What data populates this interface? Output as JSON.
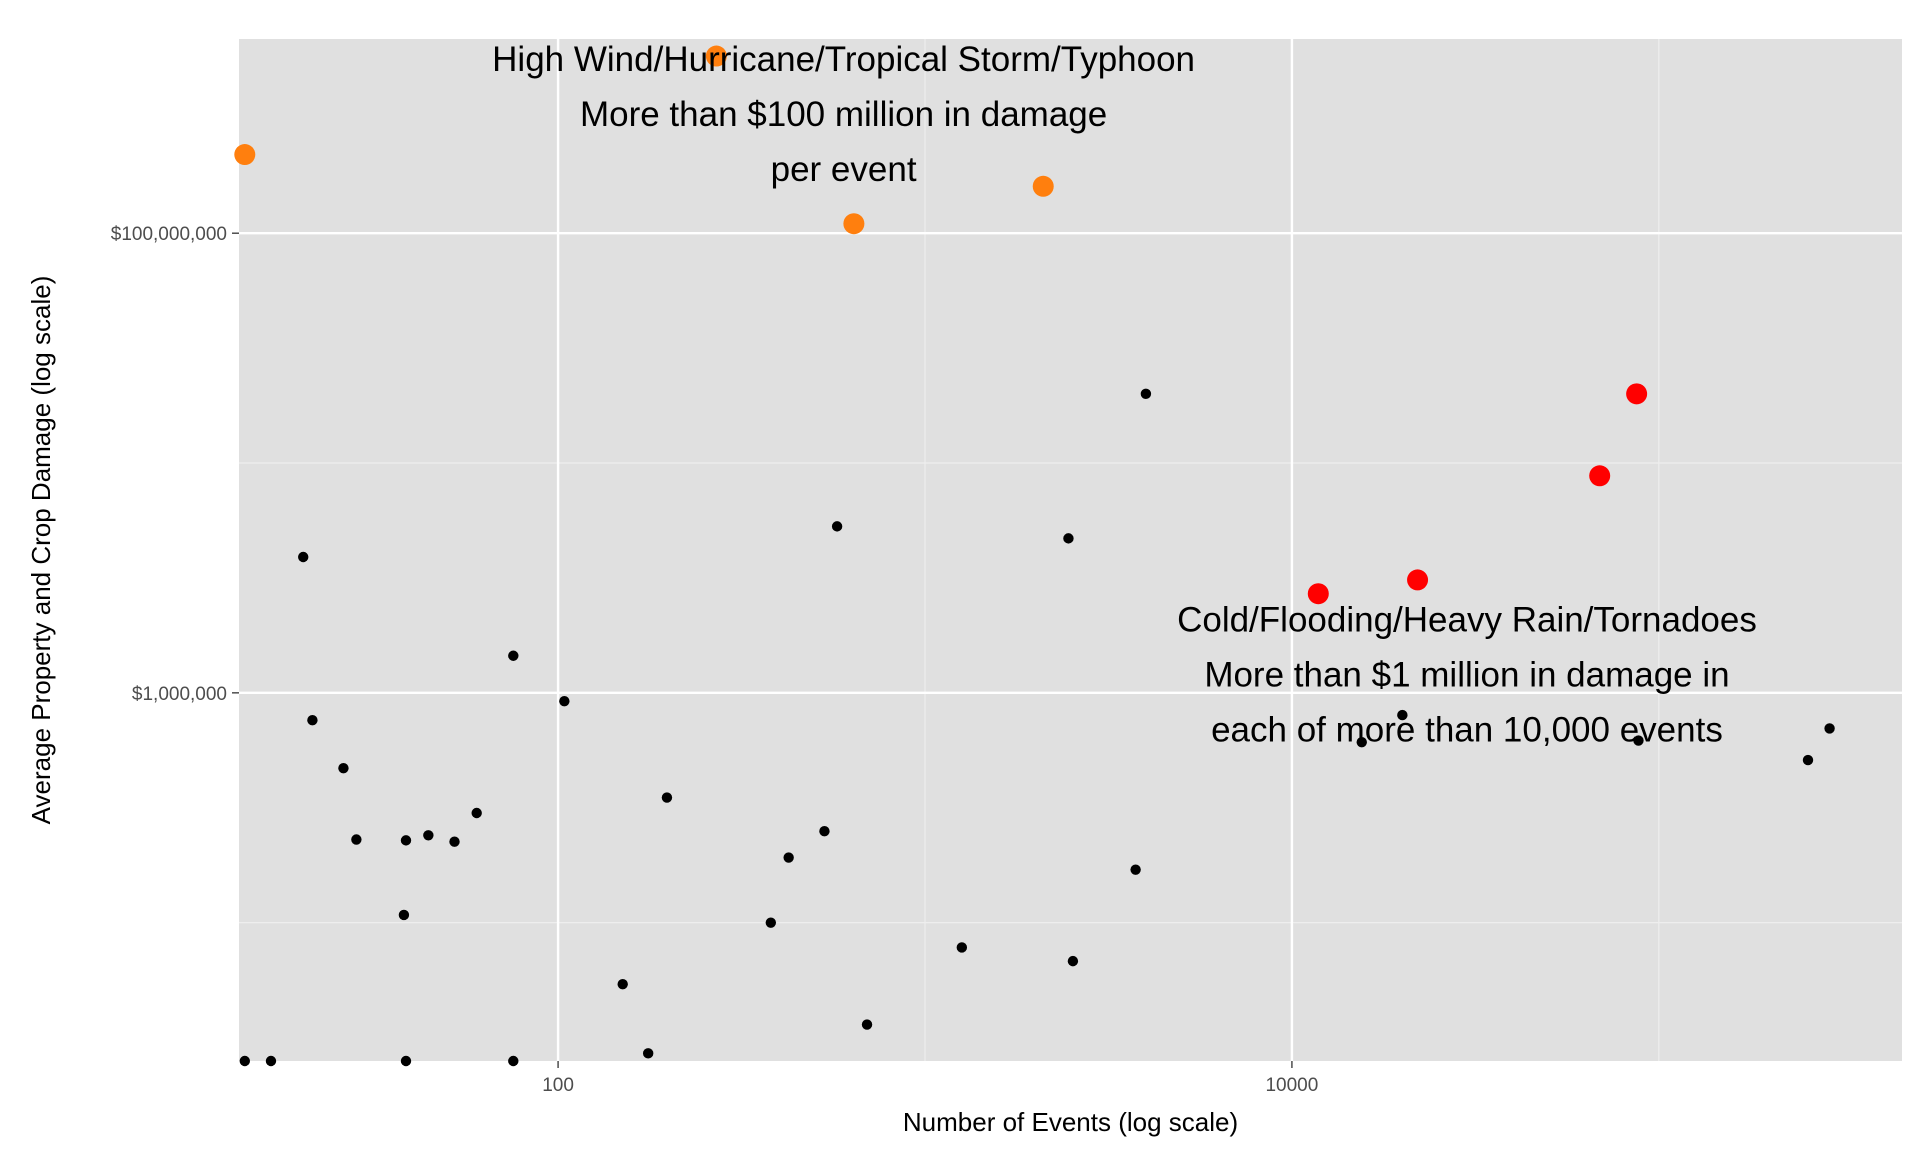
{
  "chart_data": {
    "type": "scatter",
    "xlabel": "Number of Events (log scale)",
    "ylabel": "Average Property and Crop Damage (log scale)",
    "x_scale": "log10",
    "y_scale": "log10",
    "xlim": [
      13.5,
      460000
    ],
    "ylim": [
      25000,
      700000000
    ],
    "x_ticks": [
      {
        "value": 100,
        "label": "100"
      },
      {
        "value": 10000,
        "label": "10000"
      }
    ],
    "y_ticks": [
      {
        "value": 1000000,
        "label": "$1,000,000"
      },
      {
        "value": 100000000,
        "label": "$100,000,000"
      }
    ],
    "grid": true,
    "legend": "none",
    "colors": {
      "panel": "#e0e0e0",
      "grid_major": "#ffffff",
      "grid_minor": "#eeeeee",
      "default_point": "#000000",
      "high_wind_group": "#ff7f0e",
      "flood_group": "#ff0000"
    },
    "annotations": [
      {
        "lines": [
          "High Wind/Hurricane/Tropical Storm/Typhoon",
          "More than $100 million in damage",
          "per event"
        ],
        "x": 600,
        "y": 330000000
      },
      {
        "lines": [
          "Cold/Flooding/Heavy Rain/Tornadoes",
          "More than $1 million in damage in",
          "each of more than 10,000 events"
        ],
        "x": 30000,
        "y": 1200000
      }
    ],
    "points": [
      {
        "x": 14,
        "y": 25000,
        "group": "default"
      },
      {
        "x": 16.5,
        "y": 25000,
        "group": "default"
      },
      {
        "x": 38.5,
        "y": 25000,
        "group": "default"
      },
      {
        "x": 75.5,
        "y": 25000,
        "group": "default"
      },
      {
        "x": 20.2,
        "y": 3900000,
        "group": "default"
      },
      {
        "x": 21.4,
        "y": 760000,
        "group": "default"
      },
      {
        "x": 26,
        "y": 470000,
        "group": "default"
      },
      {
        "x": 28.2,
        "y": 230000,
        "group": "default"
      },
      {
        "x": 38.5,
        "y": 228000,
        "group": "default"
      },
      {
        "x": 44.3,
        "y": 240000,
        "group": "default"
      },
      {
        "x": 52.2,
        "y": 225000,
        "group": "default"
      },
      {
        "x": 60,
        "y": 300000,
        "group": "default"
      },
      {
        "x": 38,
        "y": 108000,
        "group": "default"
      },
      {
        "x": 75.5,
        "y": 1450000,
        "group": "default"
      },
      {
        "x": 104,
        "y": 920000,
        "group": "default"
      },
      {
        "x": 150,
        "y": 54000,
        "group": "default"
      },
      {
        "x": 176,
        "y": 27000,
        "group": "default"
      },
      {
        "x": 198,
        "y": 350000,
        "group": "default"
      },
      {
        "x": 380,
        "y": 100000,
        "group": "default"
      },
      {
        "x": 425,
        "y": 192000,
        "group": "default"
      },
      {
        "x": 532,
        "y": 250000,
        "group": "default"
      },
      {
        "x": 576,
        "y": 5300000,
        "group": "default"
      },
      {
        "x": 695,
        "y": 36000,
        "group": "default"
      },
      {
        "x": 1260,
        "y": 78000,
        "group": "default"
      },
      {
        "x": 2460,
        "y": 4700000,
        "group": "default"
      },
      {
        "x": 2530,
        "y": 68000,
        "group": "default"
      },
      {
        "x": 3750,
        "y": 170000,
        "group": "default"
      },
      {
        "x": 4000,
        "y": 20000000,
        "group": "default"
      },
      {
        "x": 15500,
        "y": 610000,
        "group": "default"
      },
      {
        "x": 20000,
        "y": 800000,
        "group": "default"
      },
      {
        "x": 88000,
        "y": 620000,
        "group": "default"
      },
      {
        "x": 255000,
        "y": 510000,
        "group": "default"
      },
      {
        "x": 292000,
        "y": 700000,
        "group": "default"
      },
      {
        "x": 270,
        "y": 590000000,
        "group": "high_wind"
      },
      {
        "x": 14,
        "y": 220000000,
        "group": "high_wind"
      },
      {
        "x": 640,
        "y": 110000000,
        "group": "high_wind"
      },
      {
        "x": 2100,
        "y": 160000000,
        "group": "high_wind"
      },
      {
        "x": 11800,
        "y": 2700000,
        "group": "flood"
      },
      {
        "x": 22000,
        "y": 3100000,
        "group": "flood"
      },
      {
        "x": 69000,
        "y": 8800000,
        "group": "flood"
      },
      {
        "x": 87000,
        "y": 20000000,
        "group": "flood"
      }
    ]
  }
}
